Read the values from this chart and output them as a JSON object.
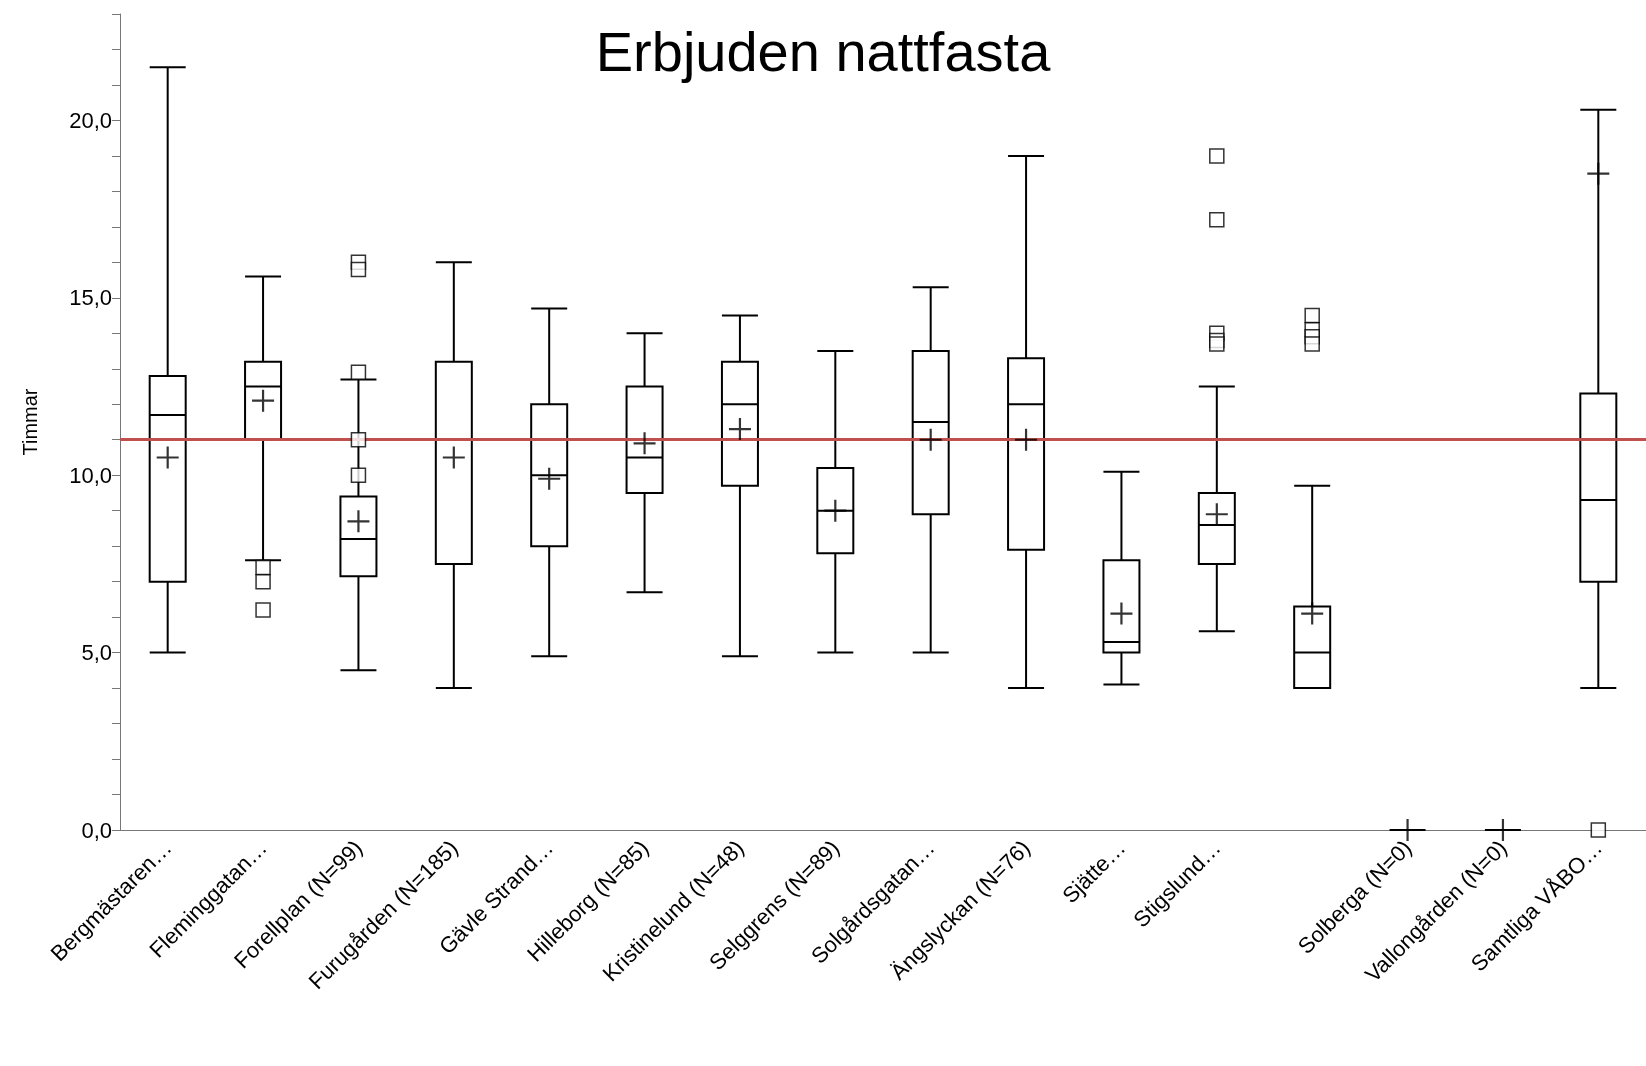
{
  "chart_data": {
    "type": "box",
    "title": "Erbjuden nattfasta",
    "ylabel": "Timmar",
    "categories": [
      "Bergmästaren…",
      "Fleminggatan…",
      "Forellplan (N=99)",
      "Furugården (N=185)",
      "Gävle Strand…",
      "Hilleborg (N=85)",
      "Kristinelund (N=48)",
      "Selggrens (N=89)",
      "Solgårdsgatan…",
      "Ängslyckan (N=76)",
      "Sjätte…",
      "Stigslund…",
      null,
      "Solberga (N=0)",
      "Vallongården (N=0)",
      "Samtliga VÅBO…"
    ],
    "boxes": [
      {
        "low": 5.0,
        "q1": 7.0,
        "median": 11.7,
        "q3": 12.8,
        "high": 21.5,
        "mean": 10.5
      },
      {
        "low": 7.6,
        "q1": 11.0,
        "median": 12.5,
        "q3": 13.2,
        "high": 15.6,
        "mean": 12.1,
        "outliers": [
          7.4,
          7.0,
          6.2
        ]
      },
      {
        "low": 4.5,
        "q1": 7.15,
        "median": 8.2,
        "q3": 9.4,
        "high": 12.7,
        "mean": 8.7,
        "outliers": [
          16.0,
          15.8,
          12.9,
          11.0,
          10.0
        ]
      },
      {
        "low": 4.0,
        "q1": 7.5,
        "median": 11.0,
        "q3": 13.2,
        "high": 16.0,
        "mean": 10.5
      },
      {
        "low": 4.9,
        "q1": 8.0,
        "median": 10.0,
        "q3": 12.0,
        "high": 14.7,
        "mean": 9.9
      },
      {
        "low": 6.7,
        "q1": 9.5,
        "median": 10.5,
        "q3": 12.5,
        "high": 14.0,
        "mean": 10.9
      },
      {
        "low": 4.9,
        "q1": 9.7,
        "median": 12.0,
        "q3": 13.2,
        "high": 14.5,
        "mean": 11.3
      },
      {
        "low": 5.0,
        "q1": 7.8,
        "median": 9.0,
        "q3": 10.2,
        "high": 13.5,
        "mean": 9.0
      },
      {
        "low": 5.0,
        "q1": 8.9,
        "median": 11.5,
        "q3": 13.5,
        "high": 15.3,
        "mean": 11.0
      },
      {
        "low": 4.0,
        "q1": 7.9,
        "median": 12.0,
        "q3": 13.3,
        "high": 19.0,
        "mean": 11.0
      },
      {
        "low": 4.1,
        "q1": 5.0,
        "median": 5.3,
        "q3": 7.6,
        "high": 10.1,
        "mean": 6.1
      },
      {
        "low": 5.6,
        "q1": 7.5,
        "median": 8.6,
        "q3": 9.5,
        "high": 12.5,
        "mean": 8.9,
        "outliers": [
          19.0,
          17.2,
          14.0,
          13.8,
          13.7
        ]
      },
      {
        "low": 4.0,
        "q1": 4.0,
        "median": 5.0,
        "q3": 6.3,
        "high": 9.7,
        "mean": 6.1,
        "outliers": [
          14.5,
          14.1,
          13.9,
          13.7
        ]
      },
      {
        "low": 0,
        "q1": 0,
        "median": 0,
        "q3": 0,
        "high": 0,
        "mean": 0
      },
      {
        "low": 0,
        "q1": 0,
        "median": 0,
        "q3": 0,
        "high": 0,
        "mean": 0
      },
      {
        "low": 4.0,
        "q1": 7.0,
        "median": 9.3,
        "q3": 12.3,
        "high": 20.3,
        "mean": 18.5,
        "outliers": [
          0
        ]
      }
    ],
    "ylim": [
      0,
      23
    ],
    "yticks": [
      {
        "value": 0,
        "label": "0,0"
      },
      {
        "value": 1,
        "label": null
      },
      {
        "value": 2,
        "label": null
      },
      {
        "value": 3,
        "label": null
      },
      {
        "value": 4,
        "label": null
      },
      {
        "value": 5,
        "label": "5,0"
      },
      {
        "value": 6,
        "label": null
      },
      {
        "value": 7,
        "label": null
      },
      {
        "value": 8,
        "label": null
      },
      {
        "value": 9,
        "label": null
      },
      {
        "value": 10,
        "label": "10,0"
      },
      {
        "value": 11,
        "label": null
      },
      {
        "value": 12,
        "label": null
      },
      {
        "value": 13,
        "label": null
      },
      {
        "value": 14,
        "label": null
      },
      {
        "value": 15,
        "label": "15,0"
      },
      {
        "value": 16,
        "label": null
      },
      {
        "value": 17,
        "label": null
      },
      {
        "value": 18,
        "label": null
      },
      {
        "value": 19,
        "label": null
      },
      {
        "value": 20,
        "label": "20,0"
      },
      {
        "value": 21,
        "label": null
      },
      {
        "value": 22,
        "label": null
      },
      {
        "value": 23,
        "label": null
      }
    ],
    "ref_lines": [
      {
        "axis": "y",
        "value": 11.0,
        "color": "#c0504d"
      }
    ],
    "color": "#000000",
    "grid": false
  }
}
